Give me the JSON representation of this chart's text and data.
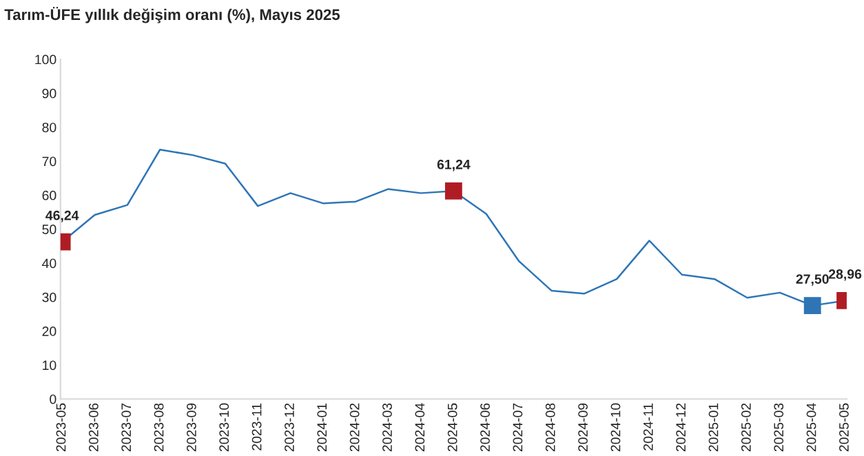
{
  "chart_data": {
    "type": "line",
    "title": "Tarım-ÜFE yıllık değişim oranı (%), Mayıs 2025",
    "categories": [
      "2023-05",
      "2023-06",
      "2023-07",
      "2023-08",
      "2023-09",
      "2023-10",
      "2023-11",
      "2023-12",
      "2024-01",
      "2024-02",
      "2024-03",
      "2024-04",
      "2024-05",
      "2024-06",
      "2024-07",
      "2024-08",
      "2024-09",
      "2024-10",
      "2024-11",
      "2024-12",
      "2025-01",
      "2025-02",
      "2025-03",
      "2025-04",
      "2025-05"
    ],
    "series": [
      {
        "color": "#2e75b6",
        "marker": "none",
        "values": [
          46.24,
          54.2,
          57.1,
          73.4,
          71.8,
          69.3,
          56.8,
          60.6,
          57.6,
          58.1,
          61.8,
          60.6,
          61.24,
          54.5,
          40.6,
          31.9,
          31.0,
          35.3,
          46.6,
          36.6,
          35.3,
          29.8,
          31.3,
          27.5,
          28.96
        ]
      },
      {
        "type": "scatter",
        "color": "#b01c24",
        "marker": "square",
        "values": [
          46.24,
          null,
          null,
          null,
          null,
          null,
          null,
          null,
          null,
          null,
          null,
          null,
          61.24,
          null,
          null,
          null,
          null,
          null,
          null,
          null,
          null,
          null,
          null,
          null,
          28.96
        ],
        "value_labels": [
          "46,24",
          null,
          null,
          null,
          null,
          null,
          null,
          null,
          null,
          null,
          null,
          null,
          "61,24",
          null,
          null,
          null,
          null,
          null,
          null,
          null,
          null,
          null,
          null,
          null,
          "28,96"
        ]
      },
      {
        "type": "scatter",
        "color": "#2e75b6",
        "marker": "square",
        "values": [
          null,
          null,
          null,
          null,
          null,
          null,
          null,
          null,
          null,
          null,
          null,
          null,
          null,
          null,
          null,
          null,
          null,
          null,
          null,
          null,
          null,
          null,
          null,
          27.5,
          null
        ],
        "value_labels": [
          null,
          null,
          null,
          null,
          null,
          null,
          null,
          null,
          null,
          null,
          null,
          null,
          null,
          null,
          null,
          null,
          null,
          null,
          null,
          null,
          null,
          null,
          null,
          "27,50",
          null
        ]
      }
    ],
    "ylim": [
      0,
      100
    ],
    "yticks": [
      0,
      10,
      20,
      30,
      40,
      50,
      60,
      70,
      80,
      90,
      100
    ],
    "grid": false,
    "legend": false
  }
}
